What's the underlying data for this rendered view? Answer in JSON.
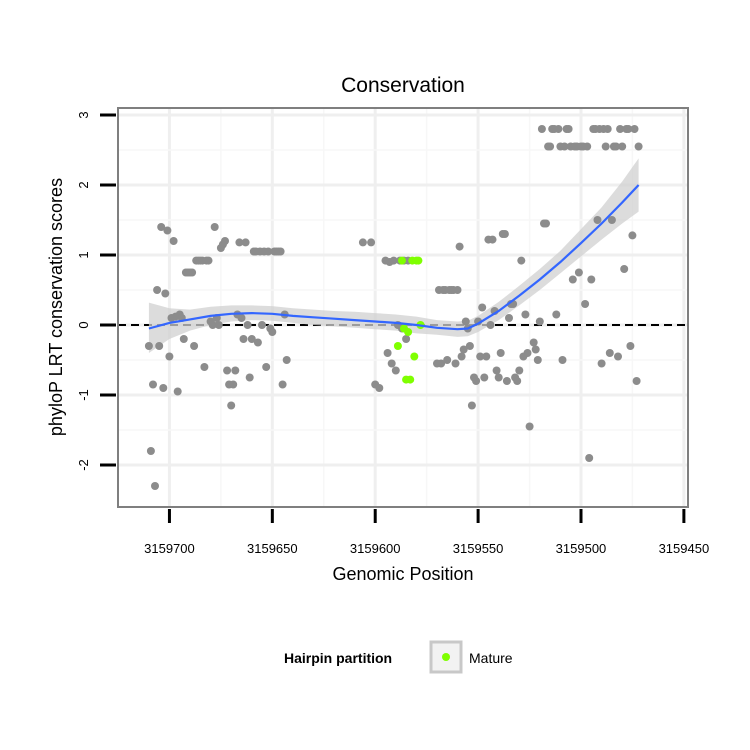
{
  "chart_data": {
    "type": "scatter",
    "title": "Conservation",
    "xlabel": "Genomic Position",
    "ylabel": "phyloP LRT conservation scores",
    "x_reversed": true,
    "xlim": [
      3159725,
      3159448
    ],
    "ylim": [
      -2.6,
      3.1
    ],
    "x_ticks": [
      3159700,
      3159650,
      3159600,
      3159550,
      3159500,
      3159450
    ],
    "x_tick_labels": [
      "3159700",
      "3159650",
      "3159600",
      "3159550",
      "3159500",
      "3159450"
    ],
    "y_ticks": [
      -2,
      -1,
      0,
      1,
      2,
      3
    ],
    "y_tick_labels": [
      "-2",
      "-1",
      "0",
      "1",
      "2",
      "3"
    ],
    "grid": true,
    "reference_line": {
      "y": 0,
      "style": "dashed"
    },
    "legend": {
      "title": "Hairpin partition",
      "position": "bottom",
      "entries": [
        {
          "label": "Mature",
          "color": "#7fff00"
        }
      ]
    },
    "colors": {
      "points": "#8c8c8c",
      "mature": "#7fff00",
      "smooth": "#3366ff",
      "band": "#d0d0d0",
      "panel_border": "#7f7f7f"
    },
    "series": [
      {
        "group": "other",
        "points": [
          [
            3159710,
            -0.3
          ],
          [
            3159709,
            -1.8
          ],
          [
            3159708,
            -0.85
          ],
          [
            3159707,
            -2.3
          ],
          [
            3159706,
            0.5
          ],
          [
            3159705,
            -0.3
          ],
          [
            3159704,
            1.4
          ],
          [
            3159703,
            -0.9
          ],
          [
            3159702,
            0.45
          ],
          [
            3159701,
            1.35
          ],
          [
            3159700,
            -0.45
          ],
          [
            3159699,
            0.1
          ],
          [
            3159698,
            1.2
          ],
          [
            3159697,
            0.12
          ],
          [
            3159696,
            -0.95
          ],
          [
            3159695,
            0.15
          ],
          [
            3159694,
            0.1
          ],
          [
            3159693,
            -0.2
          ],
          [
            3159692,
            0.75
          ],
          [
            3159691,
            0.75
          ],
          [
            3159690,
            0.75
          ],
          [
            3159689,
            0.75
          ],
          [
            3159688,
            -0.3
          ],
          [
            3159687,
            0.92
          ],
          [
            3159686,
            0.92
          ],
          [
            3159685,
            0.92
          ],
          [
            3159684,
            0.92
          ],
          [
            3159683,
            -0.6
          ],
          [
            3159682,
            0.92
          ],
          [
            3159681,
            0.92
          ],
          [
            3159680,
            0.05
          ],
          [
            3159679,
            0.0
          ],
          [
            3159678,
            1.4
          ],
          [
            3159677,
            0.1
          ],
          [
            3159676,
            0.0
          ],
          [
            3159675,
            1.1
          ],
          [
            3159674,
            1.15
          ],
          [
            3159673,
            1.2
          ],
          [
            3159672,
            -0.65
          ],
          [
            3159671,
            -0.85
          ],
          [
            3159670,
            -1.15
          ],
          [
            3159669,
            -0.85
          ],
          [
            3159668,
            -0.65
          ],
          [
            3159667,
            0.15
          ],
          [
            3159666,
            1.18
          ],
          [
            3159665,
            0.1
          ],
          [
            3159664,
            -0.2
          ],
          [
            3159663,
            1.18
          ],
          [
            3159662,
            0.0
          ],
          [
            3159661,
            -0.75
          ],
          [
            3159660,
            -0.2
          ],
          [
            3159659,
            1.05
          ],
          [
            3159658,
            1.05
          ],
          [
            3159657,
            -0.25
          ],
          [
            3159656,
            1.05
          ],
          [
            3159655,
            0.0
          ],
          [
            3159654,
            1.05
          ],
          [
            3159653,
            -0.6
          ],
          [
            3159652,
            1.05
          ],
          [
            3159651,
            -0.05
          ],
          [
            3159650,
            -0.1
          ],
          [
            3159649,
            1.05
          ],
          [
            3159648,
            1.05
          ],
          [
            3159647,
            1.05
          ],
          [
            3159646,
            1.05
          ],
          [
            3159645,
            -0.85
          ],
          [
            3159644,
            0.15
          ],
          [
            3159643,
            -0.5
          ],
          [
            3159606,
            1.18
          ],
          [
            3159602,
            1.18
          ],
          [
            3159600,
            -0.85
          ],
          [
            3159598,
            -0.9
          ],
          [
            3159595,
            0.92
          ],
          [
            3159594,
            -0.4
          ],
          [
            3159593,
            0.9
          ],
          [
            3159592,
            -0.55
          ],
          [
            3159591,
            0.92
          ],
          [
            3159590,
            -0.65
          ],
          [
            3159589,
            -0.0
          ],
          [
            3159588,
            0.92
          ],
          [
            3159587,
            -0.05
          ],
          [
            3159586,
            0.92
          ],
          [
            3159585,
            -0.2
          ],
          [
            3159584,
            0.92
          ],
          [
            3159570,
            -0.55
          ],
          [
            3159569,
            0.5
          ],
          [
            3159568,
            -0.55
          ],
          [
            3159567,
            0.5
          ],
          [
            3159566,
            0.5
          ],
          [
            3159565,
            -0.5
          ],
          [
            3159564,
            0.5
          ],
          [
            3159563,
            0.5
          ],
          [
            3159562,
            0.5
          ],
          [
            3159561,
            -0.55
          ],
          [
            3159560,
            0.5
          ],
          [
            3159559,
            1.12
          ],
          [
            3159558,
            -0.45
          ],
          [
            3159557,
            -0.35
          ],
          [
            3159556,
            0.05
          ],
          [
            3159555,
            -0.05
          ],
          [
            3159554,
            -0.3
          ],
          [
            3159553,
            -1.15
          ],
          [
            3159552,
            -0.75
          ],
          [
            3159551,
            -0.8
          ],
          [
            3159550,
            0.05
          ],
          [
            3159549,
            -0.45
          ],
          [
            3159548,
            0.25
          ],
          [
            3159547,
            -0.75
          ],
          [
            3159546,
            -0.45
          ],
          [
            3159545,
            1.22
          ],
          [
            3159544,
            0.0
          ],
          [
            3159543,
            1.22
          ],
          [
            3159542,
            0.2
          ],
          [
            3159541,
            -0.65
          ],
          [
            3159540,
            -0.75
          ],
          [
            3159539,
            -0.4
          ],
          [
            3159538,
            1.3
          ],
          [
            3159537,
            1.3
          ],
          [
            3159536,
            -0.8
          ],
          [
            3159535,
            0.1
          ],
          [
            3159534,
            0.3
          ],
          [
            3159533,
            0.3
          ],
          [
            3159532,
            -0.75
          ],
          [
            3159531,
            -0.8
          ],
          [
            3159530,
            -0.65
          ],
          [
            3159529,
            0.92
          ],
          [
            3159528,
            -0.45
          ],
          [
            3159527,
            0.15
          ],
          [
            3159526,
            -0.4
          ],
          [
            3159525,
            -1.45
          ],
          [
            3159523,
            -0.25
          ],
          [
            3159522,
            -0.35
          ],
          [
            3159521,
            -0.5
          ],
          [
            3159520,
            0.05
          ],
          [
            3159519,
            2.8
          ],
          [
            3159518,
            1.45
          ],
          [
            3159517,
            1.45
          ],
          [
            3159516,
            2.55
          ],
          [
            3159515,
            2.55
          ],
          [
            3159514,
            2.8
          ],
          [
            3159513,
            2.8
          ],
          [
            3159512,
            0.15
          ],
          [
            3159511,
            2.8
          ],
          [
            3159510,
            2.55
          ],
          [
            3159509,
            -0.5
          ],
          [
            3159508,
            2.55
          ],
          [
            3159507,
            2.8
          ],
          [
            3159506,
            2.8
          ],
          [
            3159505,
            2.55
          ],
          [
            3159504,
            0.65
          ],
          [
            3159503,
            2.55
          ],
          [
            3159502,
            2.55
          ],
          [
            3159501,
            0.75
          ],
          [
            3159500,
            2.55
          ],
          [
            3159499,
            2.55
          ],
          [
            3159498,
            0.3
          ],
          [
            3159497,
            2.55
          ],
          [
            3159496,
            -1.9
          ],
          [
            3159495,
            0.65
          ],
          [
            3159494,
            2.8
          ],
          [
            3159493,
            2.8
          ],
          [
            3159492,
            1.5
          ],
          [
            3159491,
            2.8
          ],
          [
            3159490,
            -0.55
          ],
          [
            3159489,
            2.8
          ],
          [
            3159488,
            2.55
          ],
          [
            3159487,
            2.8
          ],
          [
            3159486,
            -0.4
          ],
          [
            3159485,
            1.5
          ],
          [
            3159484,
            2.55
          ],
          [
            3159483,
            2.55
          ],
          [
            3159482,
            -0.45
          ],
          [
            3159481,
            2.8
          ],
          [
            3159480,
            2.55
          ],
          [
            3159479,
            0.8
          ],
          [
            3159478,
            2.8
          ],
          [
            3159477,
            2.8
          ],
          [
            3159476,
            -0.3
          ],
          [
            3159475,
            1.28
          ],
          [
            3159474,
            2.8
          ],
          [
            3159473,
            -0.8
          ],
          [
            3159472,
            2.55
          ]
        ]
      },
      {
        "group": "Mature",
        "points": [
          [
            3159589,
            -0.3
          ],
          [
            3159587,
            0.92
          ],
          [
            3159586,
            -0.05
          ],
          [
            3159585,
            -0.78
          ],
          [
            3159584,
            -0.1
          ],
          [
            3159583,
            -0.78
          ],
          [
            3159582,
            0.92
          ],
          [
            3159581,
            -0.45
          ],
          [
            3159580,
            0.92
          ],
          [
            3159579,
            0.92
          ],
          [
            3159578,
            0.0
          ]
        ]
      }
    ],
    "smooth_line": {
      "x": [
        3159710,
        3159700,
        3159690,
        3159680,
        3159670,
        3159660,
        3159650,
        3159640,
        3159630,
        3159620,
        3159610,
        3159600,
        3159590,
        3159580,
        3159570,
        3159560,
        3159555,
        3159550,
        3159540,
        3159530,
        3159520,
        3159510,
        3159500,
        3159490,
        3159480,
        3159472
      ],
      "y": [
        -0.05,
        0.03,
        0.08,
        0.13,
        0.16,
        0.17,
        0.16,
        0.13,
        0.11,
        0.09,
        0.07,
        0.05,
        0.03,
        0.0,
        -0.04,
        -0.06,
        -0.05,
        0.02,
        0.2,
        0.42,
        0.65,
        0.9,
        1.17,
        1.45,
        1.75,
        2.0
      ],
      "ci_low": [
        -0.4,
        -0.2,
        -0.08,
        0.0,
        0.05,
        0.07,
        0.06,
        0.03,
        0.0,
        -0.02,
        -0.04,
        -0.06,
        -0.08,
        -0.12,
        -0.14,
        -0.17,
        -0.16,
        -0.1,
        0.07,
        0.28,
        0.5,
        0.74,
        0.98,
        1.22,
        1.45,
        1.62
      ],
      "ci_high": [
        0.32,
        0.24,
        0.22,
        0.26,
        0.28,
        0.28,
        0.27,
        0.24,
        0.22,
        0.2,
        0.19,
        0.17,
        0.15,
        0.12,
        0.07,
        0.05,
        0.06,
        0.13,
        0.33,
        0.56,
        0.8,
        1.06,
        1.37,
        1.68,
        2.05,
        2.38
      ]
    }
  }
}
